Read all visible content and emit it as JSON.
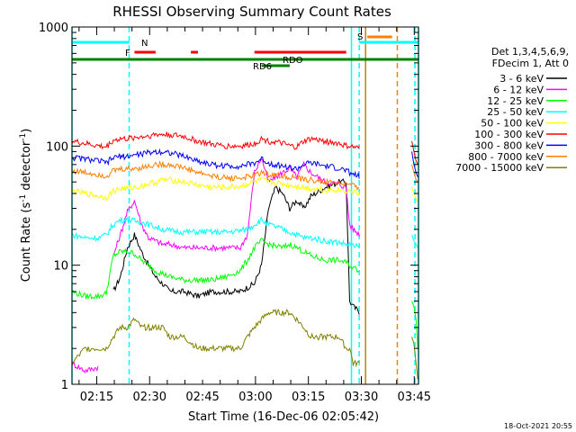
{
  "chart_data": {
    "type": "line",
    "title": "RHESSI Observing Summary Count Rates",
    "xlabel": "Start Time (16-Dec-06 02:05:42)",
    "ylabel_main": "Count Rate (s",
    "ylabel_sup1": "-1",
    "ylabel_mid": " detector",
    "ylabel_sup2": "-1",
    "ylabel_end": ")",
    "y_scale": "log",
    "ylim": [
      1,
      1000
    ],
    "xlim_minutes": [
      2.3,
      100.5
    ],
    "y_tick_labels": [
      "1",
      "10",
      "100",
      "1000"
    ],
    "x_tick_labels": [
      "02:15",
      "02:30",
      "02:45",
      "03:00",
      "03:15",
      "03:30",
      "03:45"
    ],
    "timestamp": "18-Oct-2021 20:55",
    "legend_header": [
      "Det 1,3,4,5,6,9,",
      "FDecim 1, Att 0"
    ],
    "flag_labels": {
      "N": "N",
      "F": "F",
      "S": "S",
      "RDO": "RDO",
      "RD6": "RD6"
    },
    "vertical_lines": [
      {
        "t": 2.3,
        "color": "#00ffff",
        "style": "solid"
      },
      {
        "t": 18.5,
        "color": "#00ffff",
        "style": "dashed"
      },
      {
        "t": 81.5,
        "color": "#00ffff",
        "style": "solid"
      },
      {
        "t": 83.7,
        "color": "#00ffff",
        "style": "dashed"
      },
      {
        "t": 85.5,
        "color": "#b8860b",
        "style": "solid"
      },
      {
        "t": 94.5,
        "color": "#ff7f00",
        "style": "dashed"
      },
      {
        "t": 99.5,
        "color": "#00ffff",
        "style": "dashed"
      },
      {
        "t": 100.5,
        "color": "#00ffff",
        "style": "solid"
      }
    ],
    "flag_bars": [
      {
        "name": "N",
        "color": "#00ffff",
        "y": 47,
        "segments": [
          [
            2.3,
            18.5
          ],
          [
            83.7,
            100.5
          ]
        ]
      },
      {
        "name": "F",
        "color": "#ff0000",
        "y": 58,
        "segments": [
          [
            20,
            26
          ],
          [
            36,
            38
          ],
          [
            54,
            80
          ]
        ]
      },
      {
        "name": "S",
        "color": "#ff7f00",
        "y": 41,
        "segments": [
          [
            86,
            93
          ]
        ]
      },
      {
        "name": "RDO",
        "color": "#008000",
        "y": 66,
        "segments": [
          [
            2.3,
            100.5
          ]
        ]
      },
      {
        "name": "RD6",
        "color": "#008000",
        "y": 73,
        "segments": [
          [
            56,
            64
          ]
        ]
      }
    ],
    "series": [
      {
        "name": "3 - 6 keV",
        "color": "#000000",
        "x": [
          2.3,
          10,
          12,
          14,
          16,
          18,
          20,
          22,
          24,
          26,
          28,
          30,
          34,
          38,
          42,
          46,
          50,
          52,
          54,
          56,
          58,
          60,
          62,
          64,
          66,
          68,
          70,
          74,
          78,
          80,
          81,
          82,
          84
        ],
        "y": [
          null,
          null,
          null,
          6,
          8,
          14,
          18,
          13,
          10,
          8,
          7,
          6,
          6,
          5.5,
          6,
          6,
          6,
          6.5,
          7,
          10,
          30,
          45,
          40,
          30,
          35,
          30,
          38,
          45,
          50,
          50,
          5,
          4.5,
          4
        ]
      },
      {
        "name": "6 - 12 keV",
        "color": "#ff00ff",
        "x": [
          2.3,
          6,
          10,
          12,
          14,
          16,
          18,
          20,
          22,
          24,
          26,
          28,
          30,
          34,
          38,
          42,
          46,
          50,
          52,
          54,
          56,
          58,
          60,
          62,
          64,
          66,
          68,
          70,
          74,
          78,
          80,
          81,
          82,
          84
        ],
        "y": [
          1.5,
          1.3,
          1.4,
          null,
          12,
          18,
          28,
          35,
          22,
          17,
          16,
          15,
          15,
          14,
          14,
          14,
          14,
          14,
          18,
          60,
          80,
          50,
          55,
          60,
          65,
          55,
          70,
          60,
          50,
          48,
          45,
          22,
          20,
          18
        ]
      },
      {
        "name": "12 - 25 keV",
        "color": "#00ff00",
        "x": [
          2.3,
          6,
          10,
          12,
          14,
          16,
          18,
          20,
          22,
          24,
          26,
          28,
          30,
          34,
          38,
          42,
          46,
          50,
          52,
          54,
          56,
          58,
          60,
          62,
          64,
          66,
          68,
          70,
          74,
          78,
          80,
          81,
          82,
          84
        ],
        "y": [
          6,
          5.5,
          5.5,
          5.8,
          12,
          13,
          13,
          12.5,
          11,
          10,
          9,
          8.5,
          8,
          7.5,
          7.5,
          7.5,
          8,
          9,
          11,
          14,
          16,
          15,
          14.5,
          14,
          15,
          14,
          13,
          12,
          11,
          11,
          10.5,
          10,
          9.5,
          9
        ]
      },
      {
        "name": "25 - 50 keV",
        "color": "#00ffff",
        "x": [
          2.3,
          6,
          10,
          12,
          14,
          16,
          18,
          20,
          22,
          24,
          26,
          28,
          30,
          34,
          38,
          42,
          46,
          50,
          52,
          54,
          56,
          58,
          60,
          62,
          64,
          66,
          68,
          70,
          74,
          78,
          80,
          81,
          82,
          84
        ],
        "y": [
          18,
          17,
          17,
          18,
          22,
          24,
          24,
          23.5,
          23,
          22,
          21,
          20,
          19.5,
          19,
          19,
          19,
          19,
          19.5,
          20,
          22,
          24,
          22,
          21,
          20,
          19,
          18,
          17,
          17,
          16,
          15.5,
          15,
          15,
          14.5,
          14
        ]
      },
      {
        "name": "50 - 100 keV",
        "color": "#ffff00",
        "x": [
          2.3,
          6,
          10,
          12,
          14,
          16,
          18,
          20,
          22,
          24,
          26,
          28,
          30,
          34,
          38,
          42,
          46,
          50,
          52,
          54,
          56,
          58,
          60,
          62,
          64,
          66,
          68,
          70,
          74,
          78,
          80,
          81,
          82,
          84
        ],
        "y": [
          42,
          40,
          38,
          37,
          42,
          44,
          44,
          45,
          46,
          48,
          50,
          52,
          52,
          50,
          47,
          45,
          45,
          46,
          48,
          50,
          52,
          50,
          49,
          48,
          47,
          46,
          45,
          44,
          43,
          43,
          42,
          42,
          41,
          40
        ]
      },
      {
        "name": "100 - 300 keV",
        "color": "#ff0000",
        "x": [
          2.3,
          6,
          10,
          12,
          14,
          16,
          18,
          20,
          22,
          24,
          26,
          28,
          30,
          34,
          38,
          42,
          46,
          50,
          52,
          54,
          56,
          58,
          60,
          62,
          64,
          66,
          68,
          70,
          74,
          78,
          80,
          81,
          82,
          84
        ],
        "y": [
          110,
          105,
          100,
          98,
          112,
          115,
          115,
          118,
          120,
          122,
          125,
          125,
          125,
          120,
          110,
          103,
          100,
          100,
          102,
          105,
          115,
          110,
          108,
          105,
          100,
          98,
          110,
          115,
          110,
          105,
          100,
          100,
          98,
          95
        ]
      },
      {
        "name": "300 - 800 keV",
        "color": "#0000ff",
        "x": [
          2.3,
          6,
          10,
          12,
          14,
          16,
          18,
          20,
          22,
          24,
          26,
          28,
          30,
          34,
          38,
          42,
          46,
          50,
          52,
          54,
          56,
          58,
          60,
          62,
          64,
          66,
          68,
          70,
          74,
          78,
          80,
          81,
          82,
          84
        ],
        "y": [
          80,
          78,
          75,
          72,
          80,
          82,
          82,
          84,
          86,
          88,
          90,
          90,
          88,
          82,
          75,
          70,
          68,
          68,
          70,
          72,
          78,
          72,
          70,
          68,
          66,
          64,
          70,
          72,
          68,
          65,
          62,
          60,
          58,
          55
        ]
      },
      {
        "name": "800 - 7000 keV",
        "color": "#ff7f00",
        "x": [
          2.3,
          6,
          10,
          12,
          14,
          16,
          18,
          20,
          22,
          24,
          26,
          28,
          30,
          34,
          38,
          42,
          46,
          50,
          52,
          54,
          56,
          58,
          60,
          62,
          64,
          66,
          68,
          70,
          74,
          78,
          80,
          81,
          82,
          84
        ],
        "y": [
          62,
          60,
          58,
          56,
          62,
          64,
          64,
          65,
          66,
          68,
          70,
          70,
          70,
          66,
          60,
          56,
          54,
          54,
          55,
          57,
          60,
          58,
          57,
          56,
          55,
          54,
          52,
          52,
          50,
          49,
          48,
          47,
          46,
          45
        ]
      },
      {
        "name": "7000 - 15000 keV",
        "color": "#808000",
        "x": [
          2.3,
          6,
          10,
          12,
          14,
          16,
          18,
          20,
          22,
          24,
          26,
          28,
          30,
          34,
          38,
          42,
          46,
          50,
          52,
          54,
          56,
          58,
          60,
          62,
          64,
          66,
          68,
          70,
          74,
          78,
          80,
          81,
          82,
          84
        ],
        "y": [
          1.5,
          2,
          2,
          2,
          2.5,
          3,
          3,
          3.5,
          3,
          3,
          3,
          3,
          2.5,
          2.5,
          2,
          2,
          2,
          2,
          2.5,
          3,
          3.5,
          4,
          4,
          4,
          4,
          3.5,
          3,
          2.5,
          2.5,
          2.5,
          2,
          2,
          1.5,
          1.5
        ]
      }
    ],
    "tail_series_note_free": true,
    "tail": [
      {
        "color": "#ff0000",
        "x": [
          98.6,
          99.2,
          99.8,
          100.3
        ],
        "y": [
          110,
          90,
          75,
          70
        ]
      },
      {
        "color": "#0000ff",
        "x": [
          98.6,
          99.2,
          99.8,
          100.3
        ],
        "y": [
          90,
          70,
          60,
          55
        ]
      },
      {
        "color": "#ff7f00",
        "x": [
          98.6,
          99.2,
          99.8,
          100.3
        ],
        "y": [
          70,
          60,
          52,
          50
        ]
      },
      {
        "color": "#ffff00",
        "x": [
          98.6,
          99.2,
          99.8,
          100.3
        ],
        "y": [
          45,
          40,
          36,
          34
        ]
      },
      {
        "color": "#00ffff",
        "x": [
          98.6,
          99.2,
          99.8,
          100.3
        ],
        "y": [
          18,
          16,
          15,
          14
        ]
      },
      {
        "color": "#00ff00",
        "x": [
          98.6,
          99.2,
          99.8,
          100.3
        ],
        "y": [
          5,
          4.5,
          3.5,
          2
        ]
      },
      {
        "color": "#808000",
        "x": [
          98.6,
          99.2,
          99.8,
          100.3
        ],
        "y": [
          2.5,
          2.2,
          1.5,
          1.1
        ]
      }
    ]
  }
}
